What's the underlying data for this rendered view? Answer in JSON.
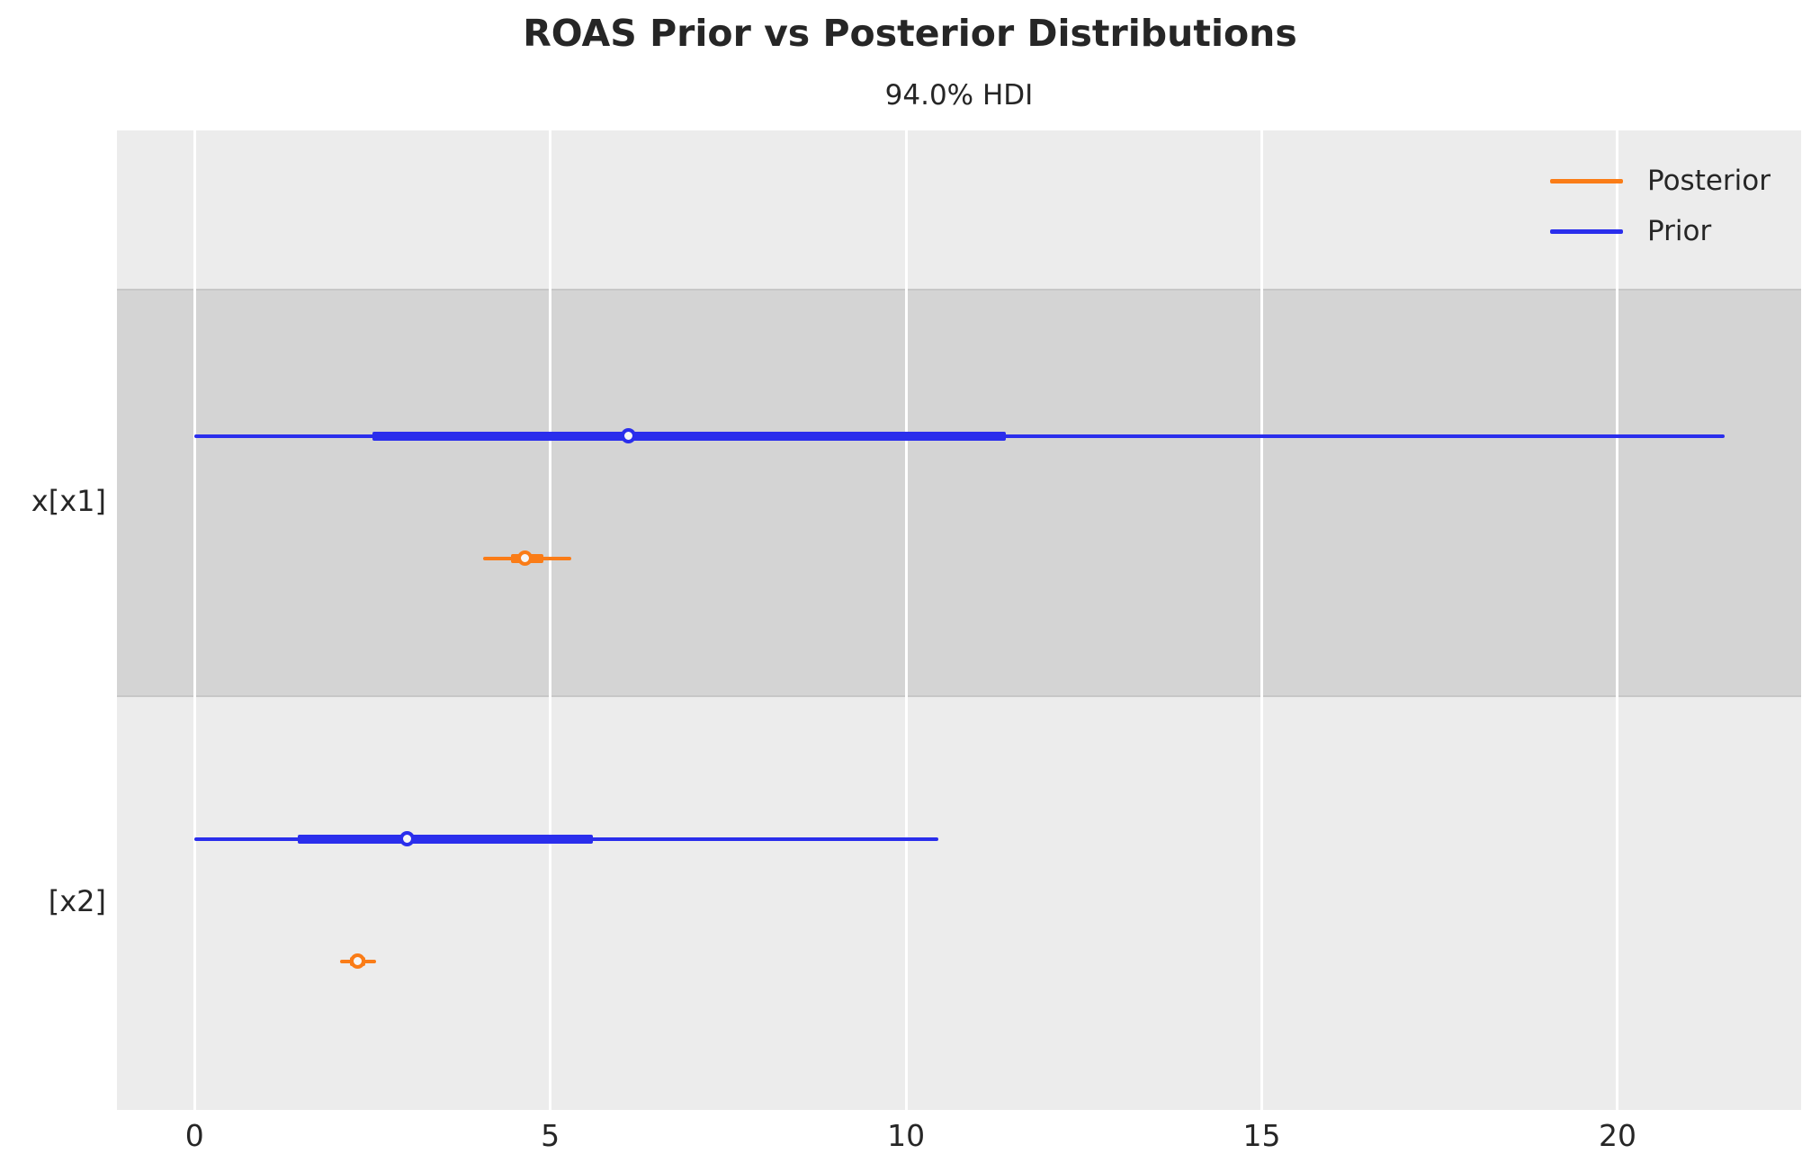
{
  "chart_data": {
    "type": "forest",
    "title": "ROAS Prior vs Posterior Distributions",
    "subtitle": "94.0% HDI",
    "hdi_probability": "94.0%",
    "xlabel": "",
    "xlim": [
      -1.09,
      22.58
    ],
    "xticks": [
      0,
      5,
      10,
      15,
      20
    ],
    "grid": "vertical-white-gridlines",
    "legend_position": "upper-right",
    "series": [
      {
        "name": "Posterior",
        "color": "#fa7c17"
      },
      {
        "name": "Prior",
        "color": "#2a2eec"
      }
    ],
    "rows": [
      {
        "label": "x[x1]",
        "shaded": true,
        "prior": {
          "hdi": [
            0.0,
            21.5
          ],
          "iqr": [
            2.5,
            11.4
          ],
          "median": 6.1
        },
        "posterior": {
          "hdi": [
            4.05,
            5.3
          ],
          "iqr": [
            4.45,
            4.9
          ],
          "median": 4.65
        }
      },
      {
        "label": "[x2]",
        "shaded": false,
        "prior": {
          "hdi": [
            0.0,
            10.45
          ],
          "iqr": [
            1.45,
            5.6
          ],
          "median": 3.0
        },
        "posterior": {
          "hdi": [
            2.05,
            2.55
          ],
          "iqr": [
            2.18,
            2.4
          ],
          "median": 2.3
        }
      }
    ]
  },
  "colors": {
    "figure_bg": "#ffffff",
    "plot_bg": "#ececec",
    "shaded_band": "#d4d4d4",
    "band_edge": "#c7c7c7",
    "gridline": "#ffffff",
    "posterior": "#fa7c17",
    "prior": "#2a2eec",
    "text": "#262626",
    "marker_face": "#f6f6f6"
  }
}
